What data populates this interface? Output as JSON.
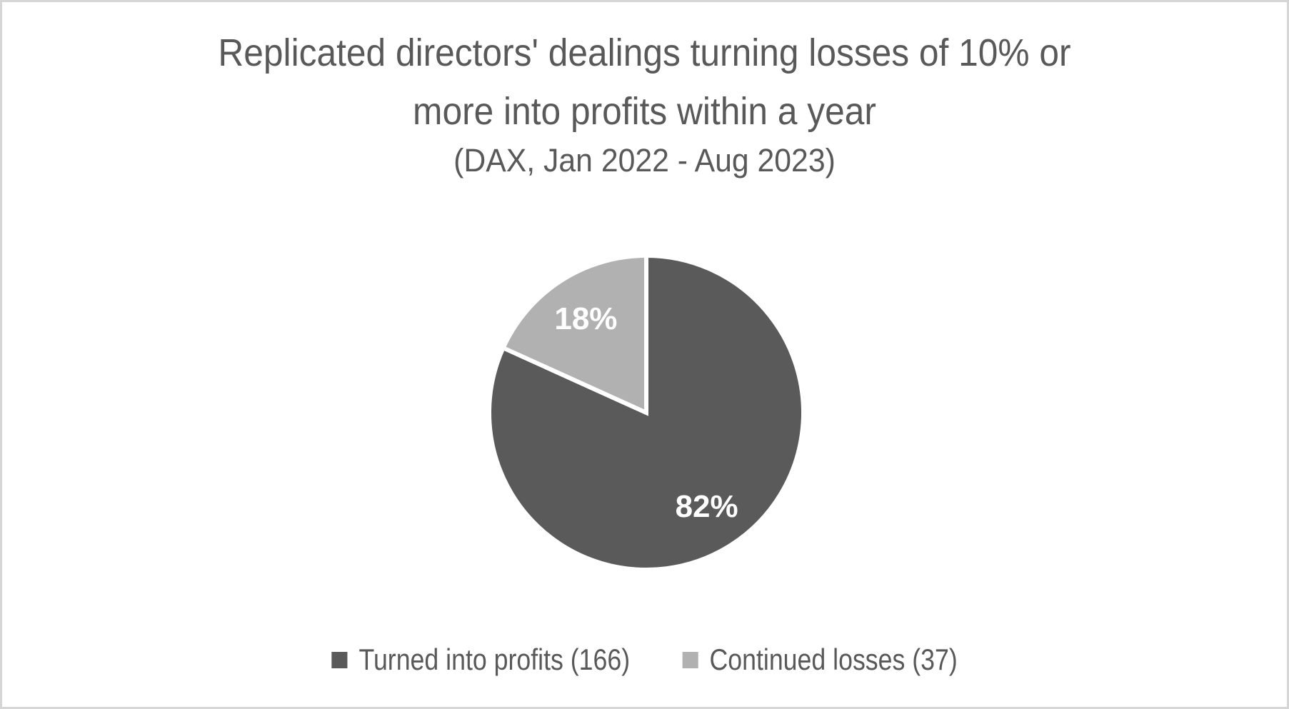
{
  "header": {
    "title_line1": "Replicated directors' dealings turning losses of 10% or",
    "title_line2": "more into profits within a year",
    "subtitle": "(DAX, Jan 2022 - Aug 2023)"
  },
  "colors": {
    "title_text": "#595959",
    "legend_text": "#595959",
    "slice_border": "#ffffff",
    "data_label_text": "#ffffff",
    "background": "#ffffff",
    "frame_border": "#d6d6d6"
  },
  "chart_data": {
    "type": "pie",
    "title": "Replicated directors' dealings turning losses of 10% or more into profits within a year",
    "subtitle": "(DAX, Jan 2022 - Aug 2023)",
    "legend_position": "bottom",
    "start_angle_deg": 0,
    "direction": "clockwise",
    "slices": [
      {
        "label": "Turned into profits (166)",
        "value": 166,
        "percent_label": "82%",
        "color": "#5a5a5a"
      },
      {
        "label": "Continued losses (37)",
        "value": 37,
        "percent_label": "18%",
        "color": "#b1b1b1"
      }
    ]
  }
}
